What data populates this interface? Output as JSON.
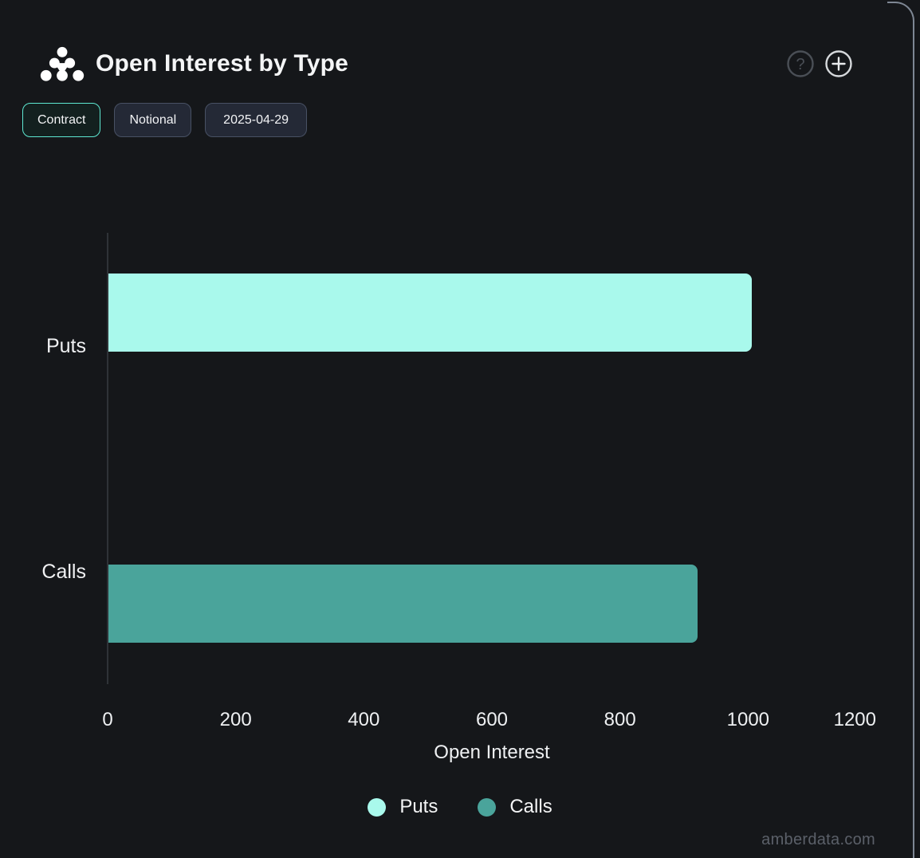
{
  "header": {
    "title": "Open Interest by Type"
  },
  "header_icons": {
    "help": "?",
    "add": "+"
  },
  "toolbar": {
    "buttons": [
      {
        "label": "Contract",
        "active": true
      },
      {
        "label": "Notional",
        "active": false
      },
      {
        "label": "2025-04-29",
        "active": false
      }
    ]
  },
  "chart_data": {
    "type": "bar",
    "orientation": "horizontal",
    "title": "Open Interest by Type",
    "categories": [
      "Puts",
      "Calls"
    ],
    "series": [
      {
        "name": "Puts",
        "color": "#a9f9ec",
        "values": [
          1005,
          null
        ]
      },
      {
        "name": "Calls",
        "color": "#4aa49b",
        "values": [
          null,
          920
        ]
      }
    ],
    "xlabel": "Open Interest",
    "xlim": [
      0,
      1200
    ],
    "xticks": [
      0,
      200,
      400,
      600,
      800,
      1000,
      1200
    ],
    "grid": false,
    "legend": [
      "Puts",
      "Calls"
    ],
    "legend_position": "bottom"
  },
  "watermark": "amberdata.com",
  "colors": {
    "puts": "#a9f9ec",
    "calls": "#4aa49b",
    "accent": "#5ee8d2",
    "background": "#15171a",
    "panel_border": "#7e8794"
  }
}
